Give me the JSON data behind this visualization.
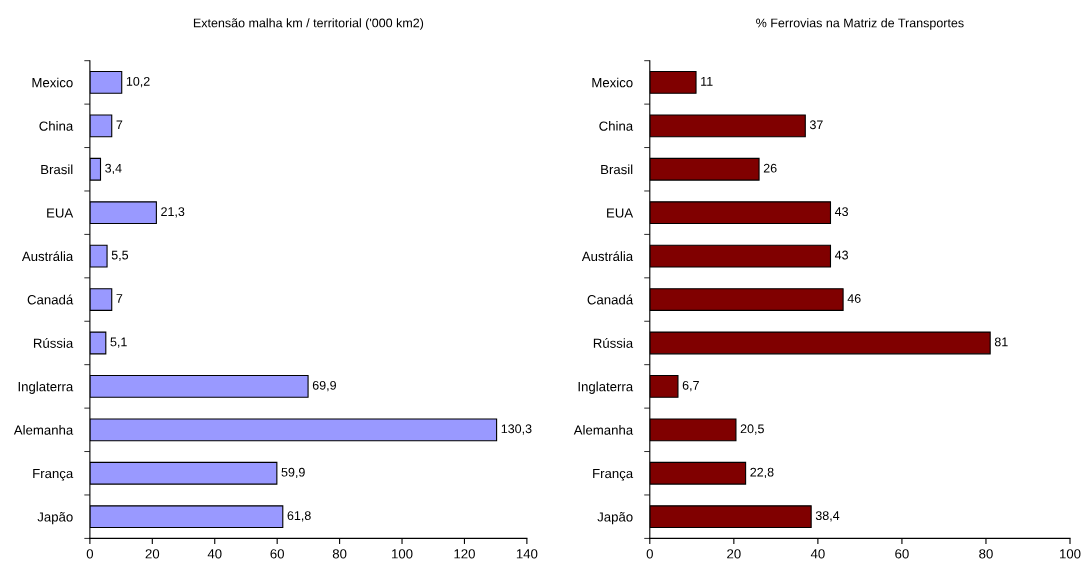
{
  "chart_data": [
    {
      "type": "bar",
      "orientation": "horizontal",
      "title": "Extensão malha km / territorial ('000 km2)",
      "categories": [
        "Mexico",
        "China",
        "Brasil",
        "EUA",
        "Austrália",
        "Canadá",
        "Rússia",
        "Inglaterra",
        "Alemanha",
        "França",
        "Japão"
      ],
      "values": [
        10.2,
        7,
        3.4,
        21.3,
        5.5,
        7,
        5.1,
        69.9,
        130.3,
        59.9,
        61.8
      ],
      "value_labels": [
        "10,2",
        "7",
        "3,4",
        "21,3",
        "5,5",
        "7",
        "5,1",
        "69,9",
        "130,3",
        "59,9",
        "61,8"
      ],
      "color": "#9999ff",
      "xlim": [
        0,
        140
      ],
      "xticks": [
        0,
        20,
        40,
        60,
        80,
        100,
        120,
        140
      ],
      "grid": false
    },
    {
      "type": "bar",
      "orientation": "horizontal",
      "title": "% Ferrovias na Matriz de Transportes",
      "categories": [
        "Mexico",
        "China",
        "Brasil",
        "EUA",
        "Austrália",
        "Canadá",
        "Rússia",
        "Inglaterra",
        "Alemanha",
        "França",
        "Japão"
      ],
      "values": [
        11,
        37,
        26,
        43,
        43,
        46,
        81,
        6.7,
        20.5,
        22.8,
        38.4
      ],
      "value_labels": [
        "11",
        "37",
        "26",
        "43",
        "43",
        "46",
        "81",
        "6,7",
        "20,5",
        "22,8",
        "38,4"
      ],
      "color": "#800000",
      "xlim": [
        0,
        100
      ],
      "xticks": [
        0,
        20,
        40,
        60,
        80,
        100
      ],
      "grid": false
    }
  ]
}
